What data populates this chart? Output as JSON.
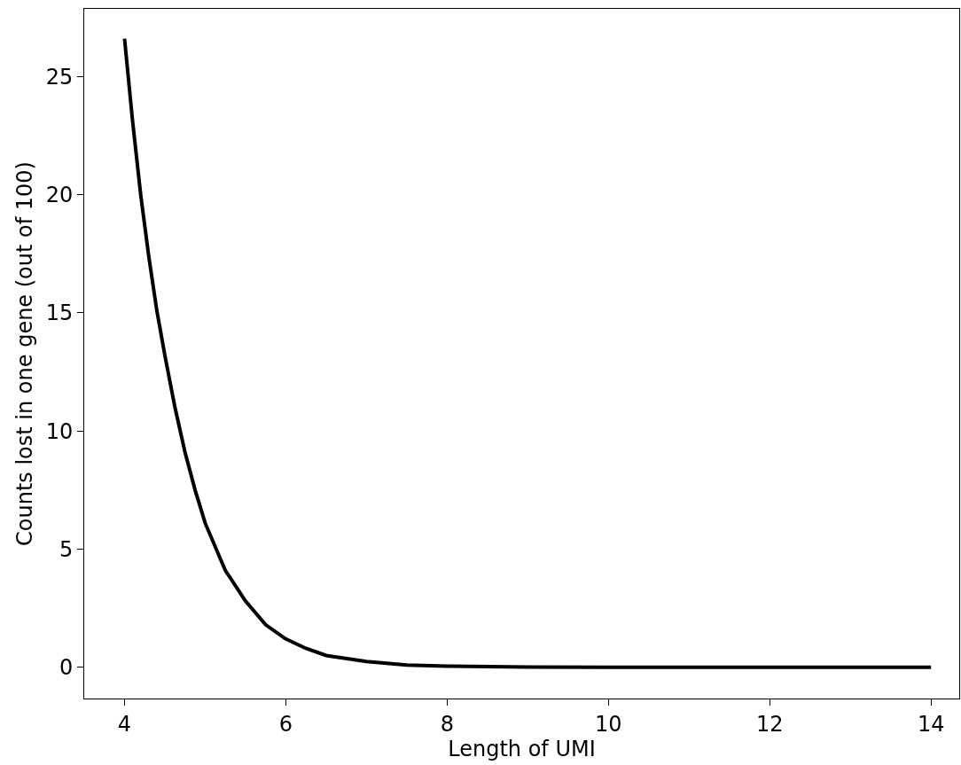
{
  "chart_data": {
    "type": "line",
    "xlabel": "Length of UMI",
    "ylabel": "Counts lost in one gene (out of 100)",
    "x": [
      4,
      4.1,
      4.2,
      4.3,
      4.4,
      4.5,
      4.625,
      4.75,
      4.875,
      5,
      5.25,
      5.5,
      5.75,
      6,
      6.25,
      6.5,
      7,
      7.5,
      8,
      9,
      10,
      11,
      12,
      13,
      14
    ],
    "series": [
      {
        "color": "#000000",
        "values": [
          26.6,
          23.1,
          20.0,
          17.4,
          15.1,
          13.2,
          11.0,
          9.1,
          7.5,
          6.1,
          4.1,
          2.8,
          1.8,
          1.2,
          0.8,
          0.5,
          0.25,
          0.1,
          0.05,
          0.01,
          0,
          0,
          0,
          0,
          0
        ]
      }
    ],
    "xlim": [
      3.5,
      14.35
    ],
    "ylim": [
      -1.32,
      27.86
    ],
    "xticks": [
      4,
      6,
      8,
      10,
      12,
      14
    ],
    "yticks": [
      0,
      5,
      10,
      15,
      20,
      25
    ],
    "marker": "none",
    "line_style": "solid"
  }
}
